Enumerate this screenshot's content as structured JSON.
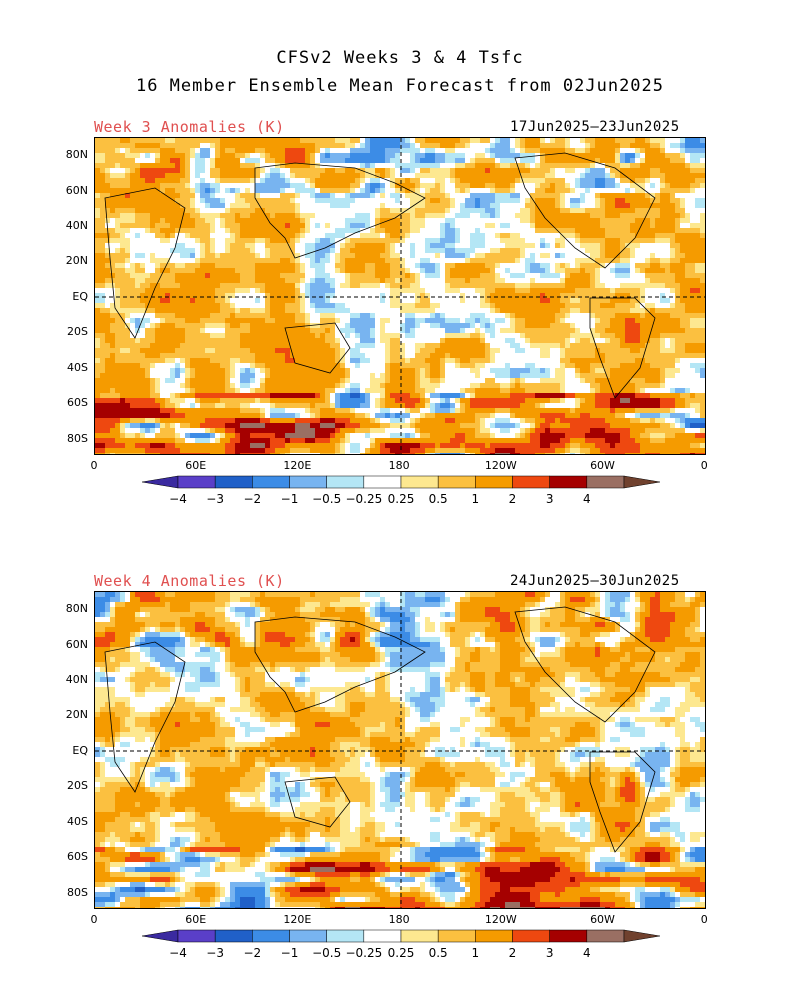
{
  "title_line1": "CFSv2 Weeks 3 & 4 Tsfc",
  "title_line2": "16 Member Ensemble Mean Forecast from 02Jun2025",
  "panels": [
    {
      "label": "Week 3 Anomalies (K)",
      "dates": "17Jun2025—23Jun2025",
      "lat_ticks": [
        "80N",
        "60N",
        "40N",
        "20N",
        "EQ",
        "20S",
        "40S",
        "60S",
        "80S"
      ],
      "lon_ticks": [
        "0",
        "60E",
        "120E",
        "180",
        "120W",
        "60W",
        "0"
      ]
    },
    {
      "label": "Week 4 Anomalies (K)",
      "dates": "24Jun2025—30Jun2025",
      "lat_ticks": [
        "80N",
        "60N",
        "40N",
        "20N",
        "EQ",
        "20S",
        "40S",
        "60S",
        "80S"
      ],
      "lon_ticks": [
        "0",
        "60E",
        "120E",
        "180",
        "120W",
        "60W",
        "0"
      ]
    }
  ],
  "colorbar": {
    "labels": [
      "−4",
      "−3",
      "−2",
      "−1",
      "−0.5",
      "−0.25",
      "0.25",
      "0.5",
      "1",
      "2",
      "3",
      "4"
    ],
    "colors": [
      "#3a2aa0",
      "#5a3fc8",
      "#2060c8",
      "#3c8ce6",
      "#78b4f0",
      "#b4e6f5",
      "#ffffff",
      "#fde890",
      "#fbc040",
      "#f59b00",
      "#ee4810",
      "#a50000",
      "#9a6f63",
      "#70412e"
    ]
  }
}
